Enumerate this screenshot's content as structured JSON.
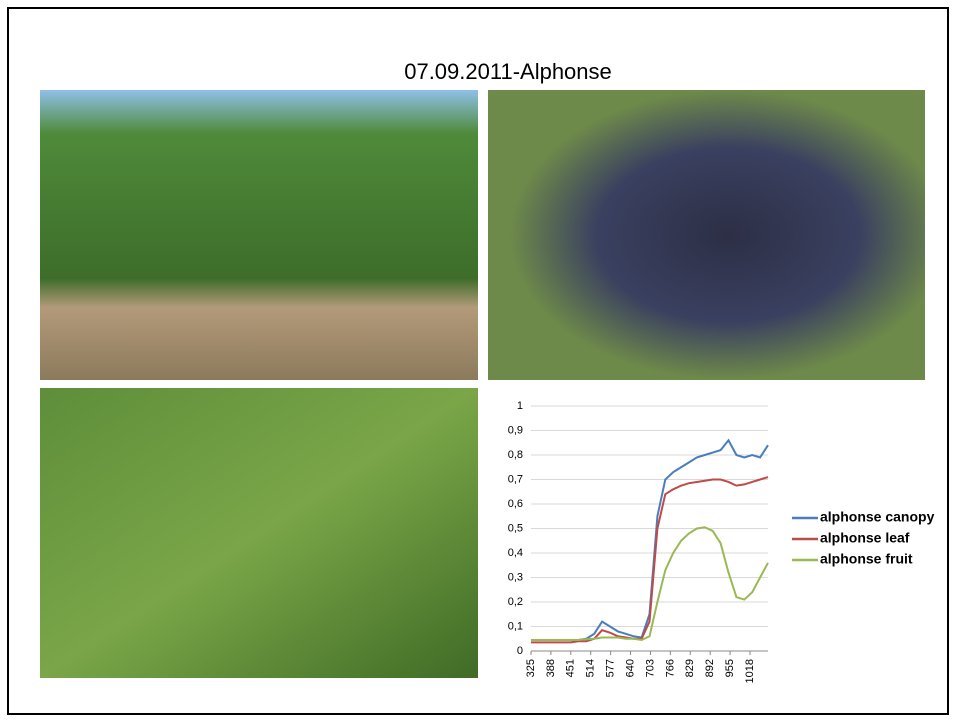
{
  "title": "07.09.2011-Alphonse",
  "chart_data": {
    "type": "line",
    "x": [
      325,
      350,
      375,
      400,
      425,
      450,
      475,
      500,
      525,
      550,
      575,
      600,
      625,
      650,
      675,
      700,
      725,
      750,
      775,
      800,
      825,
      850,
      875,
      900,
      925,
      950,
      975,
      1000,
      1025,
      1050,
      1075
    ],
    "xlim": [
      325,
      1075
    ],
    "xticks": [
      325,
      388,
      451,
      514,
      577,
      640,
      703,
      766,
      829,
      892,
      955,
      1018
    ],
    "ylim": [
      0,
      1
    ],
    "yticks": [
      0,
      {
        "value": 0.1,
        "label": "0,1"
      },
      {
        "value": 0.2,
        "label": "0,2"
      },
      {
        "value": 0.3,
        "label": "0,3"
      },
      {
        "value": 0.4,
        "label": "0,4"
      },
      {
        "value": 0.5,
        "label": "0,5"
      },
      {
        "value": 0.6,
        "label": "0,6"
      },
      {
        "value": 0.7,
        "label": "0,7"
      },
      {
        "value": 0.8,
        "label": "0,8"
      },
      {
        "value": 0.9,
        "label": "0,9"
      },
      1
    ],
    "grid": true,
    "legend": "right",
    "series": [
      {
        "name": "alphonse canopy",
        "color": "#4a7ebb",
        "values": [
          0.045,
          0.045,
          0.045,
          0.045,
          0.045,
          0.045,
          0.045,
          0.05,
          0.07,
          0.12,
          0.1,
          0.08,
          0.07,
          0.06,
          0.055,
          0.15,
          0.55,
          0.7,
          0.73,
          0.75,
          0.77,
          0.79,
          0.8,
          0.81,
          0.82,
          0.86,
          0.8,
          0.79,
          0.8,
          0.79,
          0.84
        ]
      },
      {
        "name": "alphonse leaf",
        "color": "#be4b48",
        "values": [
          0.035,
          0.035,
          0.035,
          0.035,
          0.035,
          0.035,
          0.04,
          0.04,
          0.05,
          0.085,
          0.075,
          0.06,
          0.055,
          0.05,
          0.05,
          0.12,
          0.5,
          0.64,
          0.66,
          0.675,
          0.685,
          0.69,
          0.695,
          0.7,
          0.7,
          0.69,
          0.675,
          0.68,
          0.69,
          0.7,
          0.71
        ]
      },
      {
        "name": "alphonse fruit",
        "color": "#98b954",
        "values": [
          0.045,
          0.045,
          0.045,
          0.045,
          0.045,
          0.045,
          0.045,
          0.048,
          0.05,
          0.055,
          0.055,
          0.055,
          0.05,
          0.05,
          0.045,
          0.06,
          0.2,
          0.33,
          0.4,
          0.45,
          0.48,
          0.5,
          0.505,
          0.49,
          0.44,
          0.32,
          0.22,
          0.21,
          0.24,
          0.3,
          0.36
        ]
      }
    ]
  }
}
